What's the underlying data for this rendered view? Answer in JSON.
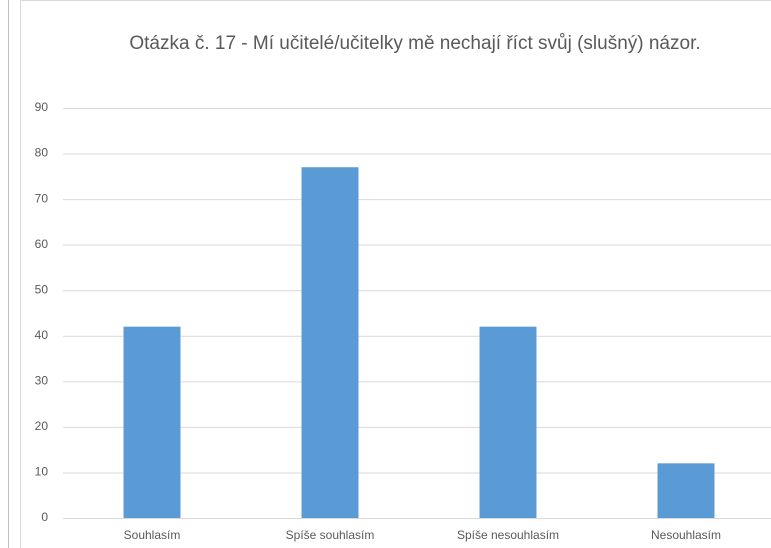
{
  "chart_data": {
    "type": "bar",
    "title": "Otázka č. 17 - Mí učitelé/učitelky mě nechají říct svůj (slušný) názor.",
    "categories": [
      "Souhlasím",
      "Spíše souhlasím",
      "Spíše nesouhlasím",
      "Nesouhlasím"
    ],
    "values": [
      42,
      77,
      42,
      12
    ],
    "color": "#5b9bd5",
    "ylim": [
      0,
      90
    ],
    "yticks": [
      0,
      10,
      20,
      30,
      40,
      50,
      60,
      70,
      80,
      90
    ],
    "grid": true
  }
}
